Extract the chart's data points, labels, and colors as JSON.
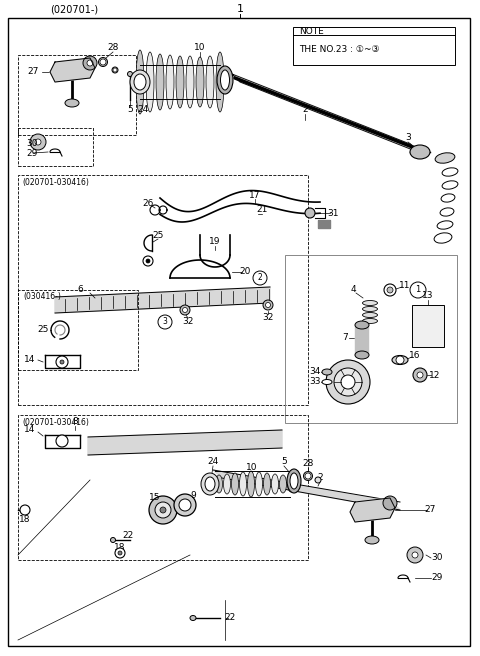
{
  "title_top_left": "(020701-)",
  "part_number_top": "1",
  "bg_color": "#ffffff",
  "line_color": "#000000",
  "text_color": "#000000",
  "fig_width": 4.8,
  "fig_height": 6.56,
  "dpi": 100
}
